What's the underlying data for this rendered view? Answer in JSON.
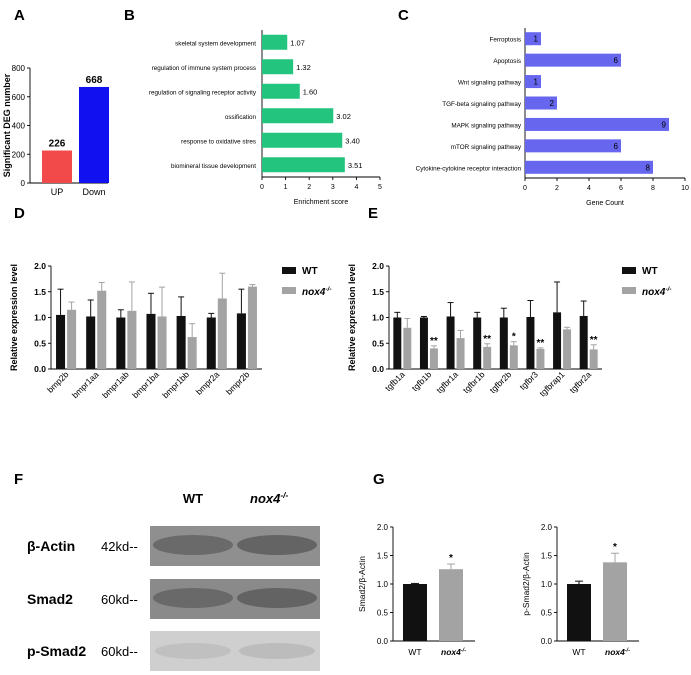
{
  "panels": {
    "A": {
      "letter": "A",
      "chart_data": {
        "type": "bar",
        "ylabel": "Significant DEG number",
        "ylim": [
          0,
          800
        ],
        "yticks": [
          "0",
          "200",
          "400",
          "600",
          "800"
        ],
        "categories": [
          "UP",
          "Down"
        ],
        "values": [
          226,
          668
        ],
        "value_labels": [
          "226",
          "668"
        ],
        "colors": [
          "#f24a4a",
          "#1010f0"
        ]
      }
    },
    "B": {
      "letter": "B",
      "chart_data": {
        "type": "bar",
        "orientation": "horizontal",
        "xlabel": "Enrichment score",
        "xlim": [
          0,
          5
        ],
        "xticks": [
          "0",
          "1",
          "2",
          "3",
          "4",
          "5"
        ],
        "categories": [
          "skeletal system development",
          "regulation of immune system process",
          "regulation of signaling receptor activity",
          "ossification",
          "response to oxidative stres",
          "biomineral tissue development"
        ],
        "values": [
          1.07,
          1.32,
          1.6,
          3.02,
          3.4,
          3.51
        ],
        "value_labels": [
          "1.07",
          "1.32",
          "1.60",
          "3.02",
          "3.40",
          "3.51"
        ],
        "color": "#22c47e"
      }
    },
    "C": {
      "letter": "C",
      "chart_data": {
        "type": "bar",
        "orientation": "horizontal",
        "xlabel": "Gene Count",
        "xlim": [
          0,
          10
        ],
        "xticks": [
          "0",
          "2",
          "4",
          "6",
          "8",
          "10"
        ],
        "categories": [
          "Ferroptosis",
          "Apoptosis",
          "Wnt signaling pathway",
          "TGF-beta signaling pathway",
          "MAPK signaling pathway",
          "mTOR signaling pathway",
          "Cytokine-cytokine receptor interaction"
        ],
        "values": [
          1,
          6,
          1,
          2,
          9,
          6,
          8
        ],
        "value_labels": [
          "1",
          "6",
          "1",
          "2",
          "9",
          "6",
          "8"
        ],
        "color": "#6666ee"
      }
    },
    "D": {
      "letter": "D",
      "chart_data": {
        "type": "bar",
        "ylabel": "Relative expression level",
        "ylim": [
          0,
          2.0
        ],
        "yticks": [
          "0.0",
          "0.5",
          "1.0",
          "1.5",
          "2.0"
        ],
        "categories": [
          "bmp2b",
          "bmpr1aa",
          "bmpr1ab",
          "bmpr1ba",
          "bmpr1bb",
          "bmpr2a",
          "bmpr2b"
        ],
        "series": [
          {
            "name": "WT",
            "color": "#111111",
            "values": [
              1.05,
              1.02,
              1.0,
              1.07,
              1.03,
              1.0,
              1.08
            ],
            "errors": [
              0.5,
              0.32,
              0.15,
              0.4,
              0.37,
              0.08,
              0.47
            ]
          },
          {
            "name": "nox4",
            "color": "#a3a3a3",
            "values": [
              1.15,
              1.52,
              1.13,
              1.02,
              0.62,
              1.37,
              1.6
            ],
            "errors": [
              0.15,
              0.16,
              0.56,
              0.57,
              0.26,
              0.49,
              0.04
            ]
          }
        ],
        "legend": {
          "wt": "WT",
          "mut": "nox4",
          "mut_sup": "-/-",
          "position": "top-right"
        }
      }
    },
    "E": {
      "letter": "E",
      "chart_data": {
        "type": "bar",
        "ylabel": "Relative expression level",
        "ylim": [
          0,
          2.0
        ],
        "yticks": [
          "0.0",
          "0.5",
          "1.0",
          "1.5",
          "2.0"
        ],
        "categories": [
          "tgfb1a",
          "tgfb1b",
          "tgfbr1a",
          "tgfbr1b",
          "tgfbr2b",
          "tgfbr3",
          "tgfbrap1",
          "tgfbr2a"
        ],
        "series": [
          {
            "name": "WT",
            "color": "#111111",
            "values": [
              1.0,
              1.0,
              1.02,
              1.0,
              1.0,
              1.01,
              1.1,
              1.03
            ],
            "errors": [
              0.1,
              0.02,
              0.27,
              0.1,
              0.18,
              0.32,
              0.59,
              0.29
            ]
          },
          {
            "name": "nox4",
            "color": "#a3a3a3",
            "values": [
              0.8,
              0.4,
              0.6,
              0.43,
              0.46,
              0.39,
              0.77,
              0.38
            ],
            "errors": [
              0.18,
              0.05,
              0.15,
              0.06,
              0.07,
              0.02,
              0.04,
              0.09
            ]
          }
        ],
        "significance": [
          "",
          "**",
          "",
          "**",
          "*",
          "**",
          "",
          "**"
        ],
        "legend": {
          "wt": "WT",
          "mut": "nox4",
          "mut_sup": "-/-",
          "position": "top-right"
        }
      }
    },
    "F": {
      "letter": "F",
      "col_wt": "WT",
      "col_mut": "nox4",
      "col_mut_sup": "-/-",
      "rows": [
        {
          "protein": "β-Actin",
          "size": "42kd--"
        },
        {
          "protein": "Smad2",
          "size": "60kd--"
        },
        {
          "protein": "p-Smad2",
          "size": "60kd--"
        }
      ]
    },
    "G": {
      "letter": "G",
      "chart_data": [
        {
          "type": "bar",
          "ylabel": "Smad2/β-Actin",
          "ylim": [
            0,
            2.0
          ],
          "yticks": [
            "0.0",
            "0.5",
            "1.0",
            "1.5",
            "2.0"
          ],
          "categories": [
            "WT",
            "nox4"
          ],
          "cat_sup": [
            "",
            "-/-"
          ],
          "values": [
            1.0,
            1.26
          ],
          "errors": [
            0.01,
            0.09
          ],
          "significance": [
            "",
            "*"
          ],
          "colors": [
            "#111111",
            "#a3a3a3"
          ]
        },
        {
          "type": "bar",
          "ylabel": "p-Smad2/β-Actin",
          "ylim": [
            0,
            2.0
          ],
          "yticks": [
            "0.0",
            "0.5",
            "1.0",
            "1.5",
            "2.0"
          ],
          "categories": [
            "WT",
            "nox4"
          ],
          "cat_sup": [
            "",
            "-/-"
          ],
          "values": [
            1.0,
            1.38
          ],
          "errors": [
            0.05,
            0.16
          ],
          "significance": [
            "",
            "*"
          ],
          "colors": [
            "#111111",
            "#a3a3a3"
          ]
        }
      ]
    }
  }
}
